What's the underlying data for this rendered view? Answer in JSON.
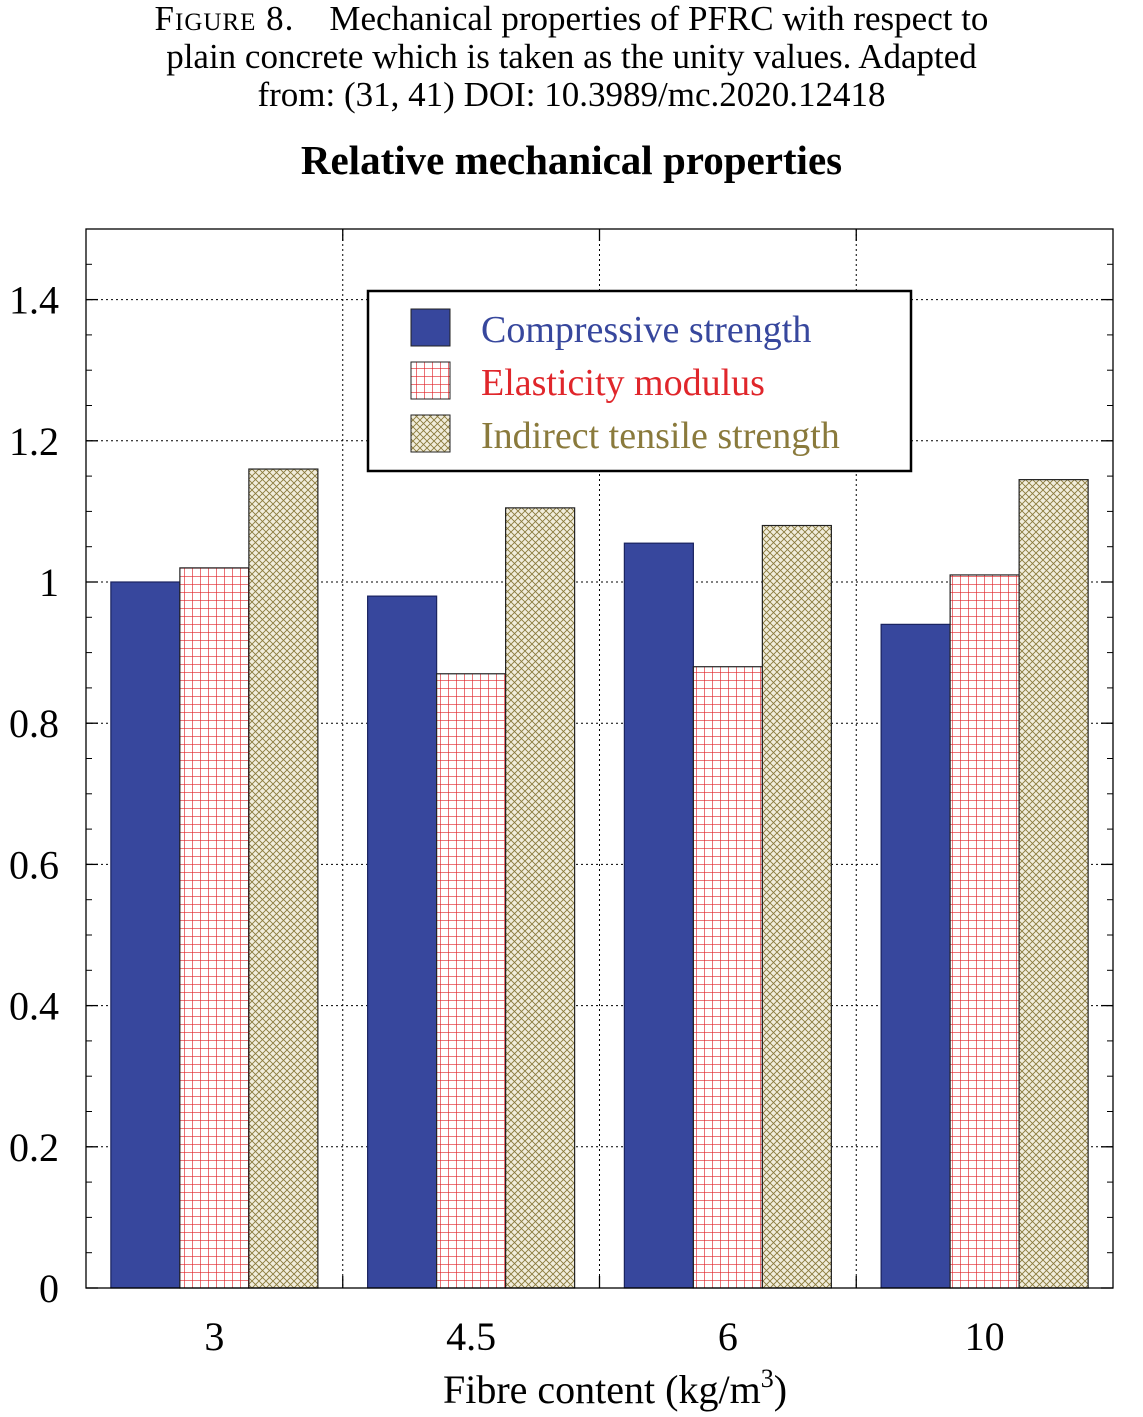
{
  "caption": {
    "label": "Figure 8.",
    "text_line1": "Mechanical properties of PFRC with respect to",
    "text_line2": "plain concrete which is taken as the unity values. Adapted",
    "text_line3": "from: (31, 41) DOI: 10.3989/mc.2020.12418"
  },
  "chart_data": {
    "type": "bar",
    "title": "Relative mechanical properties",
    "xlabel": "Fibre content (kg/m",
    "xlabel_superscript": "3",
    "xlabel_suffix": ")",
    "ylabel": "",
    "categories": [
      "3",
      "4.5",
      "6",
      "10"
    ],
    "ylim": [
      0,
      1.5
    ],
    "yticks": [
      "0",
      "0.2",
      "0.4",
      "0.6",
      "0.8",
      "1",
      "1.2",
      "1.4"
    ],
    "grid": true,
    "legend_position": "top-center",
    "series": [
      {
        "name": "Compressive strength",
        "values": [
          1.0,
          0.98,
          1.055,
          0.94
        ],
        "color": "#37479d",
        "pattern": "solid"
      },
      {
        "name": "Elasticity modulus",
        "values": [
          1.02,
          0.87,
          0.88,
          1.01
        ],
        "color": "#e0262b",
        "pattern": "grid"
      },
      {
        "name": "Indirect tensile strength",
        "values": [
          1.16,
          1.105,
          1.08,
          1.145
        ],
        "color": "#8a7a3c",
        "pattern": "crosshatch"
      }
    ]
  }
}
